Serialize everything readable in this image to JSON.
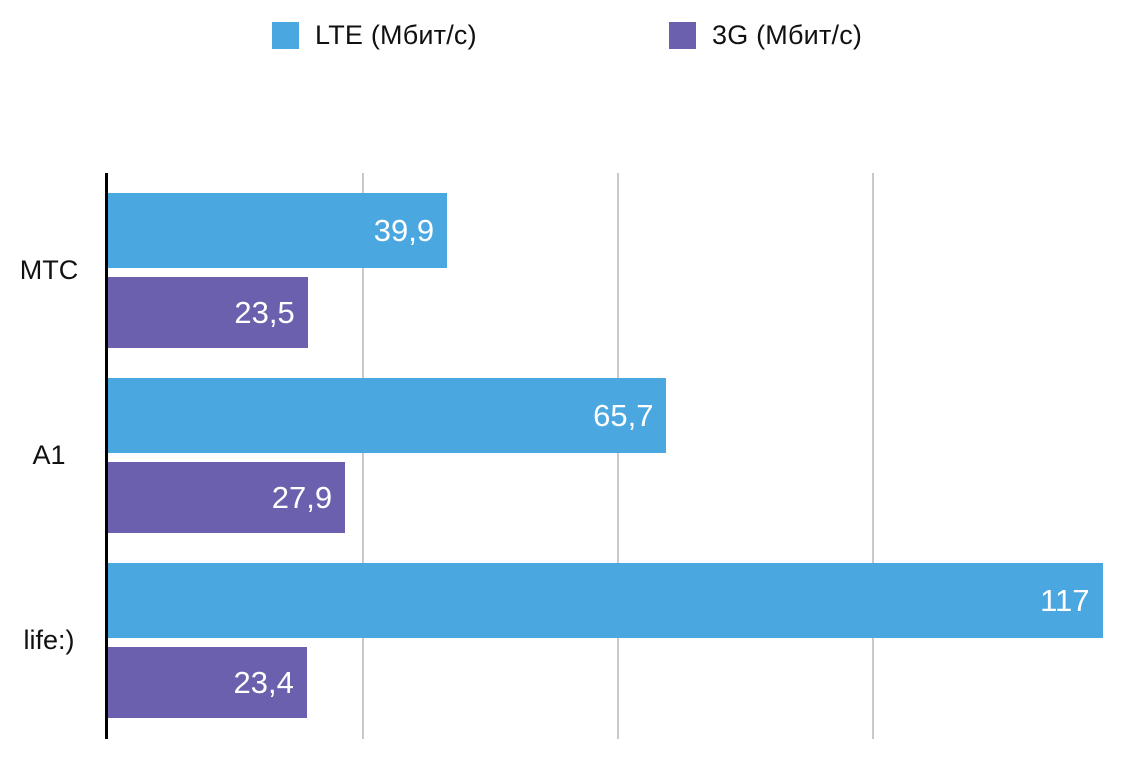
{
  "chart_data": {
    "type": "bar",
    "orientation": "horizontal",
    "title": "",
    "xlabel": "",
    "ylabel": "",
    "categories": [
      "МТС",
      "A1",
      "life:)"
    ],
    "series": [
      {
        "name": "LTE (Мбит/с)",
        "color": "#4AA7E0",
        "values": [
          39.9,
          65.7,
          117
        ],
        "value_labels": [
          "39,9",
          "65,7",
          "117"
        ]
      },
      {
        "name": "3G (Мбит/с)",
        "color": "#6A60AD",
        "values": [
          23.5,
          27.9,
          23.4
        ],
        "value_labels": [
          "23,5",
          "27,9",
          "23,4"
        ]
      }
    ],
    "xlim": [
      0,
      120
    ],
    "gridline_values": [
      30,
      60,
      90,
      120
    ],
    "grid": true,
    "gridline_color": "#c9c9c9",
    "axis_color": "#000000",
    "value_label_color": "#ffffff",
    "legend_position": "top",
    "background_color": "#ffffff"
  }
}
